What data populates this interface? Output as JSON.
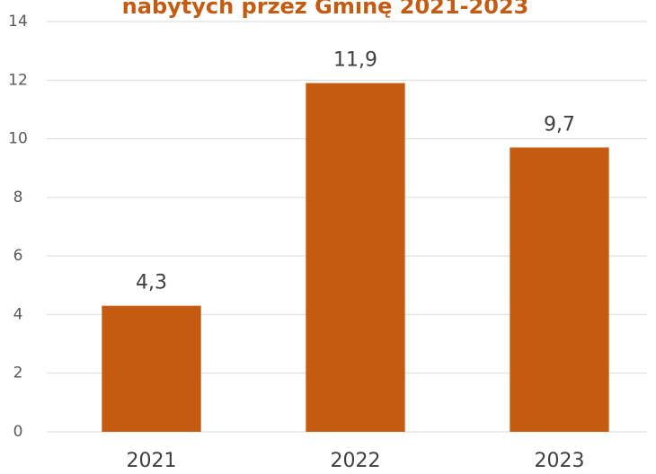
{
  "chart_data": {
    "type": "bar",
    "title": "nabytych przez Gminę 2021-2023",
    "categories": [
      "2021",
      "2022",
      "2023"
    ],
    "values": [
      4.3,
      11.9,
      9.7
    ],
    "value_labels": [
      "4,3",
      "11,9",
      "9,7"
    ],
    "color": "#c55a11",
    "ylim": [
      0,
      14
    ],
    "yticks": [
      0,
      2,
      4,
      6,
      8,
      10,
      12,
      14
    ],
    "grid": true
  }
}
